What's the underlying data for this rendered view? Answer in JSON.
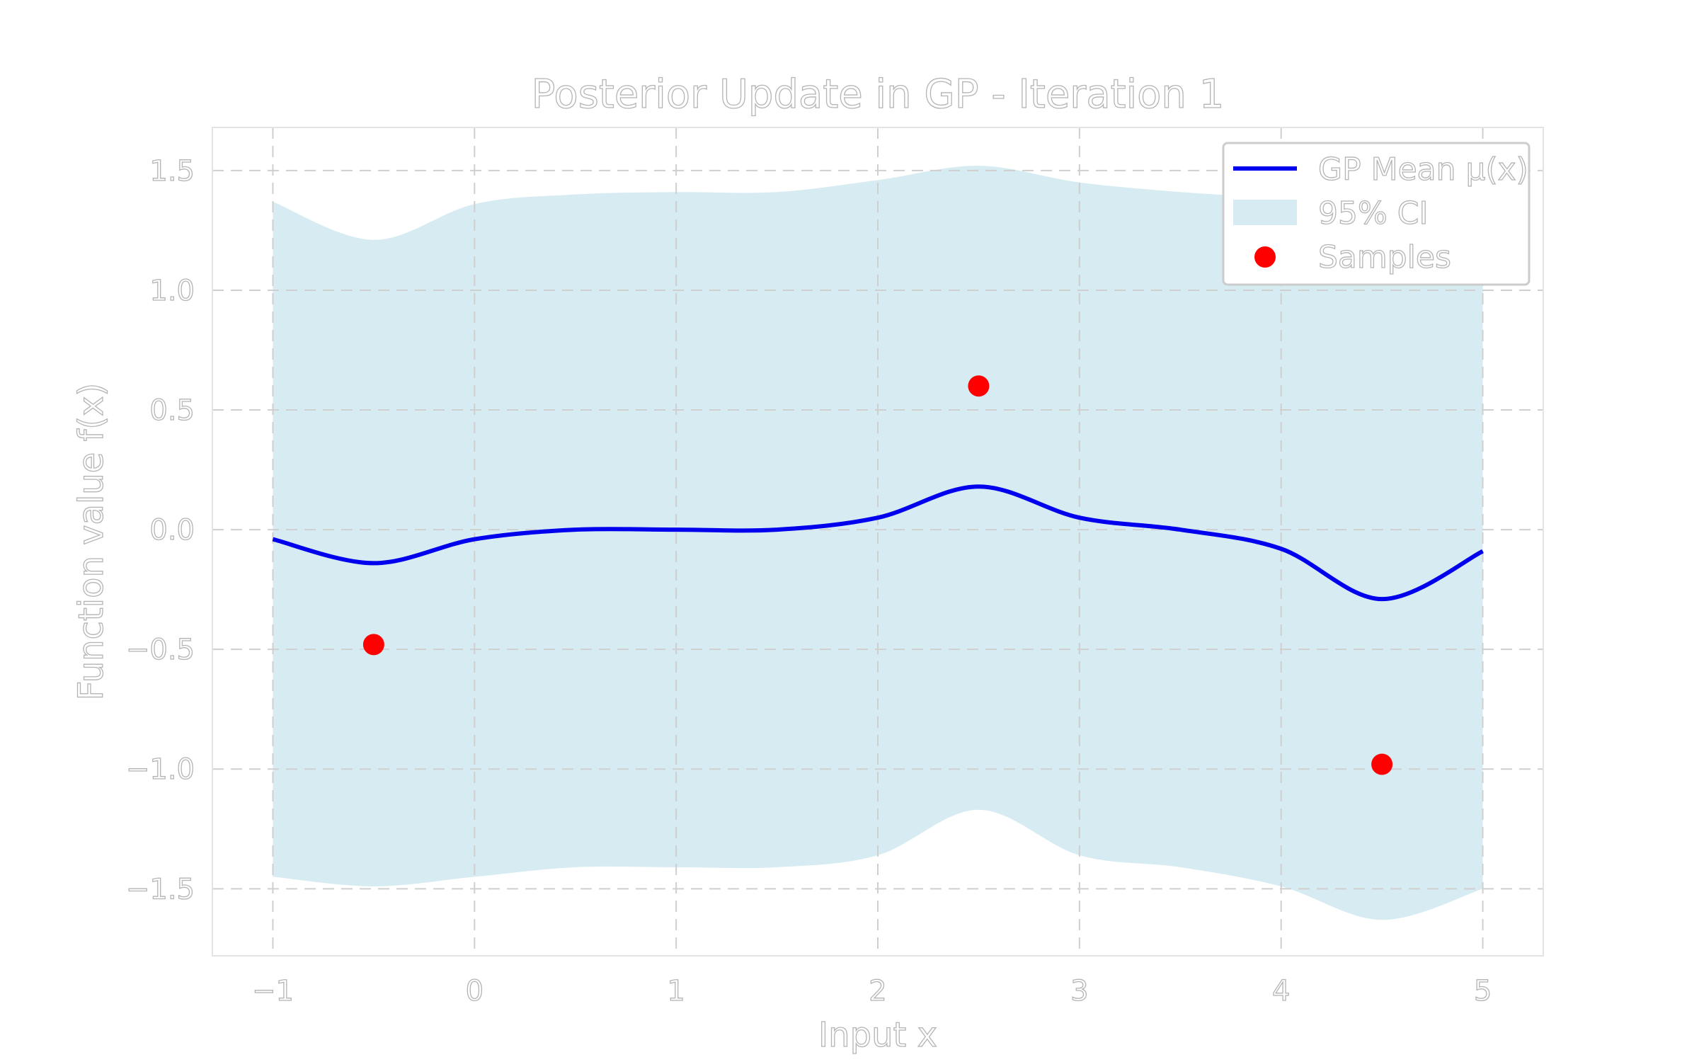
{
  "chart_data": {
    "type": "line",
    "title": "Posterior Update in GP - Iteration 1",
    "xlabel": "Input x",
    "ylabel": "Function value f(x)",
    "xlim": [
      -1.3,
      5.3
    ],
    "ylim": [
      -1.78,
      1.68
    ],
    "xticks": [
      -1,
      0,
      1,
      2,
      3,
      4,
      5
    ],
    "xtick_labels": [
      "−1",
      "0",
      "1",
      "2",
      "3",
      "4",
      "5"
    ],
    "yticks": [
      -1.5,
      -1.0,
      -0.5,
      0.0,
      0.5,
      1.0,
      1.5
    ],
    "ytick_labels": [
      "−1.5",
      "−1.0",
      "−0.5",
      "0.0",
      "0.5",
      "1.0",
      "1.5"
    ],
    "grid": true,
    "legend_position": "top-right",
    "series": [
      {
        "name": "GP Mean μ(x)",
        "kind": "line",
        "color": "#0000ee",
        "x": [
          -1.0,
          -0.5,
          0.0,
          0.5,
          1.0,
          1.5,
          2.0,
          2.5,
          3.0,
          3.5,
          4.0,
          4.5,
          5.0
        ],
        "y": [
          -0.04,
          -0.14,
          -0.04,
          0.0,
          0.0,
          0.0,
          0.05,
          0.18,
          0.05,
          0.0,
          -0.08,
          -0.29,
          -0.09
        ]
      },
      {
        "name": "95% CI",
        "kind": "band",
        "color": "#add8e6",
        "x": [
          -1.0,
          -0.5,
          0.0,
          0.5,
          1.0,
          1.5,
          2.0,
          2.5,
          3.0,
          3.5,
          4.0,
          4.5,
          5.0
        ],
        "upper": [
          1.37,
          1.21,
          1.36,
          1.4,
          1.41,
          1.41,
          1.46,
          1.52,
          1.45,
          1.41,
          1.38,
          1.32,
          1.32
        ],
        "lower": [
          -1.45,
          -1.49,
          -1.45,
          -1.41,
          -1.41,
          -1.41,
          -1.36,
          -1.17,
          -1.36,
          -1.41,
          -1.49,
          -1.63,
          -1.5
        ]
      },
      {
        "name": "Samples",
        "kind": "scatter",
        "color": "#ff0000",
        "x": [
          -0.5,
          2.5,
          4.5
        ],
        "y": [
          -0.48,
          0.6,
          -0.98
        ]
      }
    ]
  }
}
